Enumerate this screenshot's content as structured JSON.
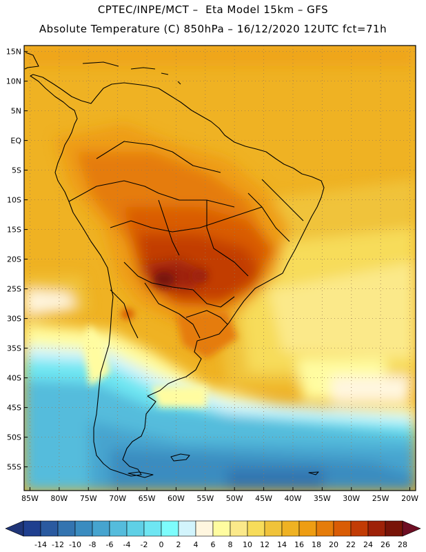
{
  "header": {
    "line1": "CPTEC/INPE/MCT –  Eta Model 15km – GFS",
    "line2": "Absolute Temperature (C) 850hPa – 16/12/2020 12UTC fct=71h"
  },
  "map": {
    "lat_labels": [
      "15N",
      "10N",
      "5N",
      "EQ",
      "5S",
      "10S",
      "15S",
      "20S",
      "25S",
      "30S",
      "35S",
      "40S",
      "45S",
      "50S",
      "55S"
    ],
    "lon_labels": [
      "85W",
      "80W",
      "75W",
      "70W",
      "65W",
      "60W",
      "55W",
      "50W",
      "45W",
      "40W",
      "35W",
      "30W",
      "25W",
      "20W"
    ],
    "lat_range": [
      16,
      -59
    ],
    "lon_range": [
      -86,
      -19
    ],
    "grid": "dotted"
  },
  "colorbar": {
    "labels": [
      "-14",
      "-12",
      "-10",
      "-8",
      "-6",
      "-4",
      "-2",
      "0",
      "2",
      "4",
      "6",
      "8",
      "10",
      "12",
      "14",
      "16",
      "18",
      "20",
      "22",
      "24",
      "26",
      "28"
    ],
    "colors": [
      "#1f3f8f",
      "#2a5aa0",
      "#3374b0",
      "#3a8cc0",
      "#46a4cf",
      "#55bcdc",
      "#5fd0e6",
      "#6ee6f2",
      "#7dfcfc",
      "#d2f4fc",
      "#fff6df",
      "#fffca0",
      "#fbe98a",
      "#f7dc5a",
      "#f0c33a",
      "#efb223",
      "#ee9d12",
      "#e57c0a",
      "#d95c05",
      "#c23c05",
      "#9e2208",
      "#781408"
    ],
    "under_color": "#1f3578",
    "over_color": "#6e0e23"
  }
}
